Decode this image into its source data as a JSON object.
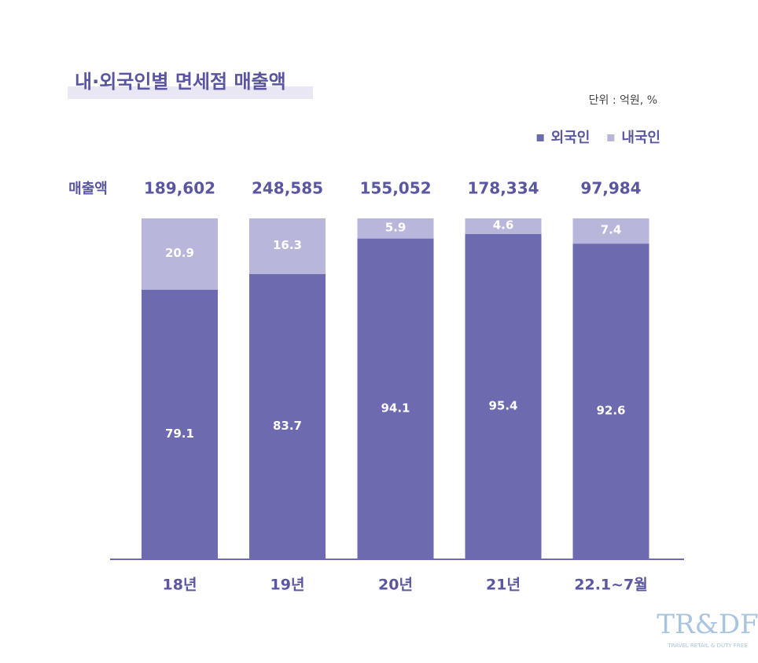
{
  "chart_data": {
    "type": "stacked_bar",
    "title": "내·외국인별 면세점 매출액",
    "unit": "단위 : 억원, %",
    "categories": [
      "18년",
      "19년",
      "20년",
      "21년",
      "22.1~7월"
    ],
    "series": [
      {
        "name": "외국인",
        "color": "#6e6ab0",
        "values": [
          79.1,
          83.7,
          94.1,
          95.4,
          92.6
        ]
      },
      {
        "name": "내국인",
        "color": "#b9b6dc",
        "values": [
          20.9,
          16.3,
          5.9,
          4.6,
          7.4
        ]
      }
    ],
    "totals": {
      "name": "매출액",
      "values": [
        189602,
        248585,
        155052,
        178334,
        97984
      ],
      "value_labels": [
        "189,602",
        "248,585",
        "155,052",
        "178,334",
        "97,984"
      ]
    },
    "ylim": [
      0,
      100
    ],
    "legend": "top-right",
    "logo": "TR&DF",
    "logo_sub": "TRAVEL RETAIL & DUTY FREE"
  }
}
